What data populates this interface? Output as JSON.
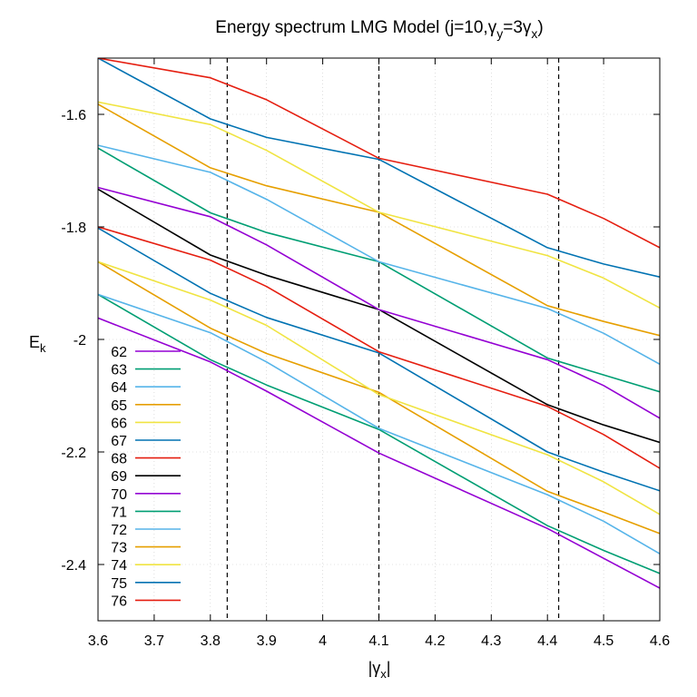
{
  "chart_data": {
    "type": "line",
    "title": "Energy spectrum LMG Model (j=10,γ_y=3γ_x)",
    "xlabel": "|γ_x|",
    "ylabel": "E_k",
    "xlim": [
      3.6,
      4.6
    ],
    "ylim": [
      -2.5,
      -1.5
    ],
    "xticks": [
      3.6,
      3.7,
      3.8,
      3.9,
      4.0,
      4.1,
      4.2,
      4.3,
      4.4,
      4.5,
      4.6
    ],
    "xtick_labels": [
      "3.6",
      "3.7",
      "3.8",
      "3.9",
      "4",
      "4.1",
      "4.2",
      "4.3",
      "4.4",
      "4.5",
      "4.6"
    ],
    "yticks": [
      -2.4,
      -2.2,
      -2.0,
      -1.8,
      -1.6
    ],
    "ytick_labels": [
      "-2.4",
      "-2.2",
      "-2",
      "-1.8",
      "-1.6"
    ],
    "grid": true,
    "legend_position": "bottom-left",
    "vlines": [
      3.83,
      4.1,
      4.42
    ],
    "x": [
      3.6,
      3.8,
      3.9,
      4.1,
      4.4,
      4.5,
      4.6
    ],
    "series": [
      {
        "name": "62",
        "color": "#9400d3",
        "values": [
          -1.962,
          -2.04,
          -2.092,
          -2.202,
          -2.336,
          -2.389,
          -2.442
        ]
      },
      {
        "name": "63",
        "color": "#009e73",
        "values": [
          -1.92,
          -2.036,
          -2.081,
          -2.16,
          -2.331,
          -2.375,
          -2.416
        ]
      },
      {
        "name": "64",
        "color": "#56b4e9",
        "values": [
          -1.92,
          -1.988,
          -2.04,
          -2.158,
          -2.276,
          -2.323,
          -2.381
        ]
      },
      {
        "name": "65",
        "color": "#e69f00",
        "values": [
          -1.862,
          -1.98,
          -2.025,
          -2.094,
          -2.27,
          -2.307,
          -2.345
        ]
      },
      {
        "name": "66",
        "color": "#f0e442",
        "values": [
          -1.862,
          -1.93,
          -1.975,
          -2.098,
          -2.205,
          -2.253,
          -2.311
        ]
      },
      {
        "name": "67",
        "color": "#0072b2",
        "values": [
          -1.802,
          -1.918,
          -1.961,
          -2.024,
          -2.2,
          -2.236,
          -2.269
        ]
      },
      {
        "name": "68",
        "color": "#e51e10",
        "values": [
          -1.8,
          -1.859,
          -1.906,
          -2.022,
          -2.119,
          -2.169,
          -2.229
        ]
      },
      {
        "name": "69",
        "color": "#000000",
        "values": [
          -1.733,
          -1.85,
          -1.886,
          -1.947,
          -2.116,
          -2.152,
          -2.183
        ]
      },
      {
        "name": "70",
        "color": "#9400d3",
        "values": [
          -1.73,
          -1.782,
          -1.832,
          -1.947,
          -2.036,
          -2.082,
          -2.14
        ]
      },
      {
        "name": "71",
        "color": "#009e73",
        "values": [
          -1.66,
          -1.775,
          -1.81,
          -1.862,
          -2.033,
          -2.063,
          -2.093
        ]
      },
      {
        "name": "72",
        "color": "#56b4e9",
        "values": [
          -1.655,
          -1.703,
          -1.751,
          -1.862,
          -1.945,
          -1.989,
          -2.044
        ]
      },
      {
        "name": "73",
        "color": "#e69f00",
        "values": [
          -1.582,
          -1.695,
          -1.727,
          -1.774,
          -1.94,
          -1.968,
          -1.993
        ]
      },
      {
        "name": "74",
        "color": "#f0e442",
        "values": [
          -1.578,
          -1.618,
          -1.664,
          -1.774,
          -1.851,
          -1.891,
          -1.944
        ]
      },
      {
        "name": "75",
        "color": "#0072b2",
        "values": [
          -1.5,
          -1.608,
          -1.641,
          -1.68,
          -1.837,
          -1.866,
          -1.889
        ]
      },
      {
        "name": "76",
        "color": "#e51e10",
        "values": [
          -1.5,
          -1.535,
          -1.574,
          -1.678,
          -1.742,
          -1.785,
          -1.837
        ]
      }
    ]
  }
}
